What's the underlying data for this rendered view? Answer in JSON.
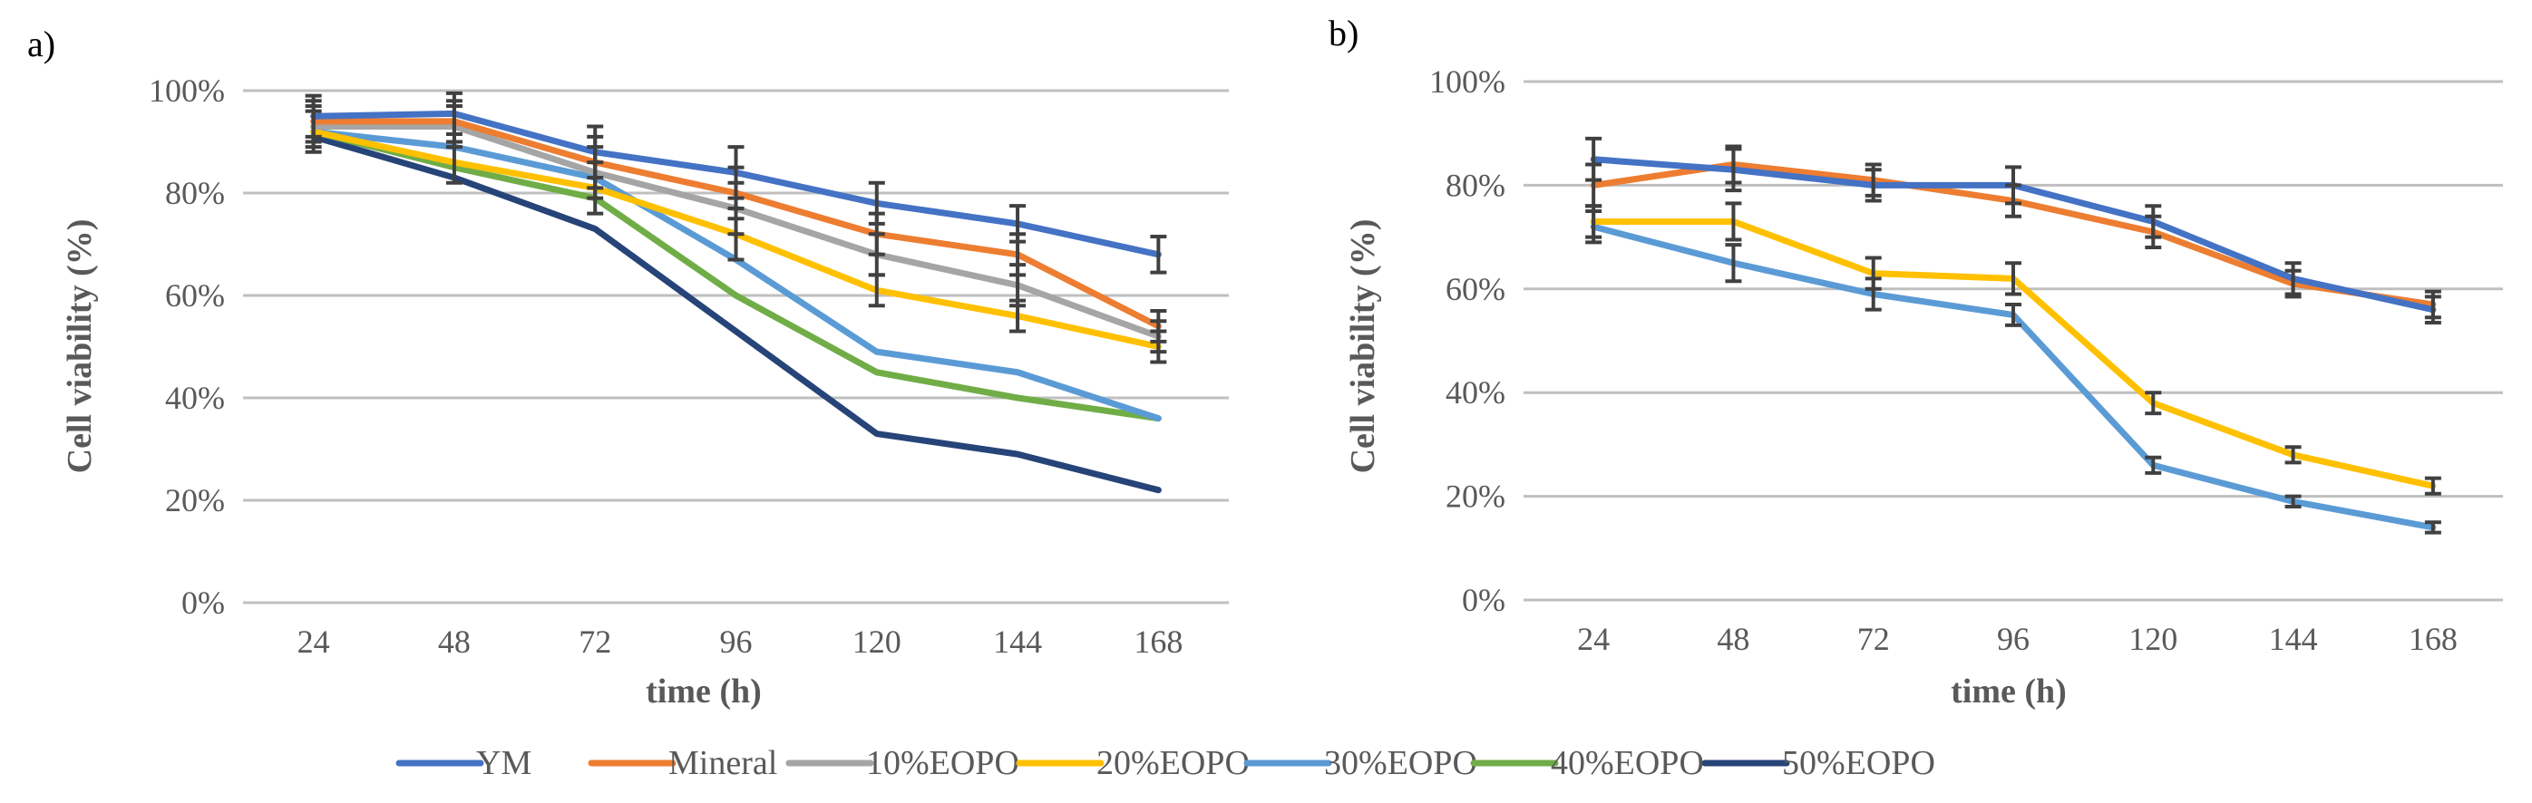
{
  "chart_data": [
    {
      "panel": "a)",
      "type": "line",
      "categories": [
        "24",
        "48",
        "72",
        "96",
        "120",
        "144",
        "168"
      ],
      "xlabel": "time (h)",
      "ylabel": "Cell viability (%)",
      "ylim": [
        0,
        100
      ],
      "yticks": [
        "0%",
        "20%",
        "40%",
        "60%",
        "80%",
        "100%"
      ],
      "grid": true,
      "series": [
        {
          "name": "YM",
          "color": "#4472c4",
          "values": [
            95,
            95.5,
            88,
            84,
            78,
            74,
            68
          ],
          "errors": [
            4,
            4,
            5,
            5,
            4,
            3.5,
            3.5
          ]
        },
        {
          "name": "Mineral",
          "color": "#ed7d31",
          "values": [
            94,
            94,
            86,
            80,
            72,
            68,
            54
          ],
          "errors": [
            4,
            4,
            5,
            5,
            4,
            4,
            3
          ]
        },
        {
          "name": "10%EOPO",
          "color": "#a5a5a5",
          "values": [
            93,
            93,
            84,
            77,
            68,
            62,
            52
          ],
          "errors": [
            4,
            4,
            5,
            5,
            4,
            4,
            3
          ]
        },
        {
          "name": "20%EOPO",
          "color": "#ffc000",
          "values": [
            92,
            86,
            81,
            72,
            61,
            56,
            50
          ],
          "errors": [
            4,
            4,
            5,
            5,
            3,
            3,
            3
          ]
        },
        {
          "name": "30%EOPO",
          "color": "#5b9bd5",
          "values": [
            92,
            89,
            83,
            67,
            49,
            45,
            36
          ],
          "errors": [
            0,
            0,
            0,
            0,
            0,
            0,
            0
          ]
        },
        {
          "name": "40%EOPO",
          "color": "#70ad47",
          "values": [
            92,
            85,
            79,
            60,
            45,
            40,
            36
          ],
          "errors": [
            0,
            0,
            0,
            0,
            0,
            0,
            0
          ]
        },
        {
          "name": "50%EOPO",
          "color": "#264478",
          "values": [
            91,
            83,
            73,
            53,
            33,
            29,
            22
          ],
          "errors": [
            0,
            0,
            0,
            0,
            0,
            0,
            0
          ]
        }
      ]
    },
    {
      "panel": "b)",
      "type": "line",
      "categories": [
        "24",
        "48",
        "72",
        "96",
        "120",
        "144",
        "168"
      ],
      "xlabel": "time (h)",
      "ylabel": "Cell viability (%)",
      "ylim": [
        0,
        100
      ],
      "yticks": [
        "0%",
        "20%",
        "40%",
        "60%",
        "80%",
        "100%"
      ],
      "grid": true,
      "series": [
        {
          "name": "YM",
          "color": "#4472c4",
          "values": [
            85,
            83,
            80,
            80,
            73,
            62,
            56
          ],
          "errors": [
            4,
            4,
            3,
            3.5,
            3,
            3,
            2.5
          ]
        },
        {
          "name": "Mineral",
          "color": "#ed7d31",
          "values": [
            80,
            84,
            81,
            77,
            71,
            61,
            57
          ],
          "errors": [
            4,
            3.5,
            3,
            3,
            3,
            2.5,
            2.5
          ]
        },
        {
          "name": "20%EOPO",
          "color": "#ffc000",
          "values": [
            73,
            73,
            63,
            62,
            38,
            28,
            22
          ],
          "errors": [
            3,
            3.5,
            3,
            3,
            2,
            1.5,
            1.5
          ]
        },
        {
          "name": "30%EOPO",
          "color": "#5b9bd5",
          "values": [
            72,
            65,
            59,
            55,
            26,
            19,
            14
          ],
          "errors": [
            3,
            3.5,
            3,
            2,
            1.5,
            1,
            1
          ]
        }
      ]
    }
  ],
  "legend": [
    {
      "label": "YM",
      "color": "#4472c4"
    },
    {
      "label": "Mineral",
      "color": "#ed7d31"
    },
    {
      "label": "10%EOPO",
      "color": "#a5a5a5"
    },
    {
      "label": "20%EOPO",
      "color": "#ffc000"
    },
    {
      "label": "30%EOPO",
      "color": "#5b9bd5"
    },
    {
      "label": "40%EOPO",
      "color": "#70ad47"
    },
    {
      "label": "50%EOPO",
      "color": "#264478"
    }
  ]
}
